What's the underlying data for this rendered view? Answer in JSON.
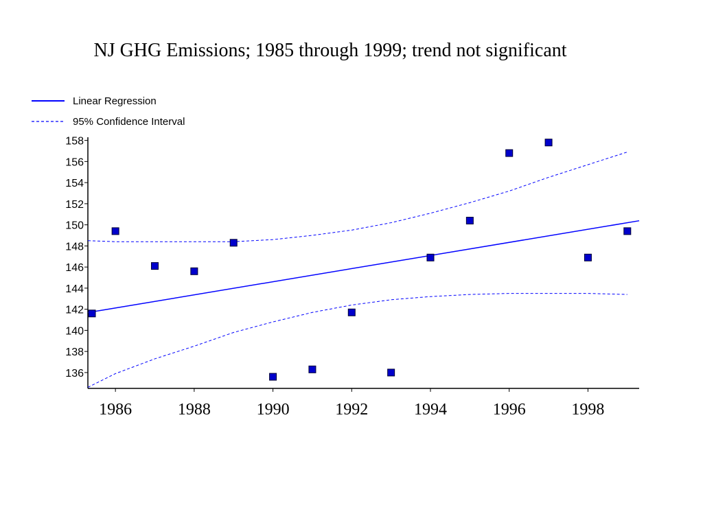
{
  "title": "NJ GHG Emissions; 1985 through 1999; trend not significant",
  "chart_data": {
    "type": "scatter",
    "title": "NJ GHG Emissions; 1985 through 1999; trend not significant",
    "xlabel": "",
    "ylabel": "",
    "xlim": [
      1985.3,
      1999.3
    ],
    "ylim": [
      134.5,
      158.3
    ],
    "x_ticks": [
      1986,
      1988,
      1990,
      1992,
      1994,
      1996,
      1998
    ],
    "y_ticks": [
      136,
      138,
      140,
      142,
      144,
      146,
      148,
      150,
      152,
      154,
      156,
      158
    ],
    "legend": {
      "position": "top-left",
      "entries": [
        "Linear Regression",
        "95% Confidence Interval"
      ]
    },
    "series": [
      {
        "kind": "points",
        "x": [
          1985,
          1986,
          1987,
          1988,
          1989,
          1990,
          1991,
          1992,
          1993,
          1994,
          1995,
          1996,
          1997,
          1998,
          1999
        ],
        "y": [
          141.6,
          149.4,
          146.1,
          145.6,
          148.3,
          135.6,
          136.3,
          141.7,
          136.0,
          146.9,
          150.4,
          156.8,
          157.8,
          146.9,
          149.4
        ]
      },
      {
        "name": "Linear Regression",
        "kind": "line",
        "x": [
          1985,
          1999
        ],
        "y": [
          141.5,
          150.2
        ]
      },
      {
        "name": "95% Confidence Interval",
        "kind": "band-upper",
        "x": [
          1985,
          1986,
          1987,
          1988,
          1989,
          1990,
          1991,
          1992,
          1993,
          1994,
          1995,
          1996,
          1997,
          1998,
          1999
        ],
        "y": [
          148.5,
          148.4,
          148.4,
          148.4,
          148.4,
          148.6,
          149.0,
          149.5,
          150.2,
          151.1,
          152.1,
          153.2,
          154.5,
          155.7,
          156.9
        ]
      },
      {
        "name": "95% Confidence Interval",
        "kind": "band-lower",
        "x": [
          1985,
          1986,
          1987,
          1988,
          1989,
          1990,
          1991,
          1992,
          1993,
          1994,
          1995,
          1996,
          1997,
          1998,
          1999
        ],
        "y": [
          134.6,
          135.9,
          137.3,
          138.5,
          139.8,
          140.8,
          141.7,
          142.4,
          142.9,
          143.2,
          143.4,
          143.5,
          143.5,
          143.5,
          143.4
        ]
      }
    ],
    "colors": {
      "points": "#0000cc",
      "line": "#0000ff",
      "ci": "#0000ff"
    }
  }
}
